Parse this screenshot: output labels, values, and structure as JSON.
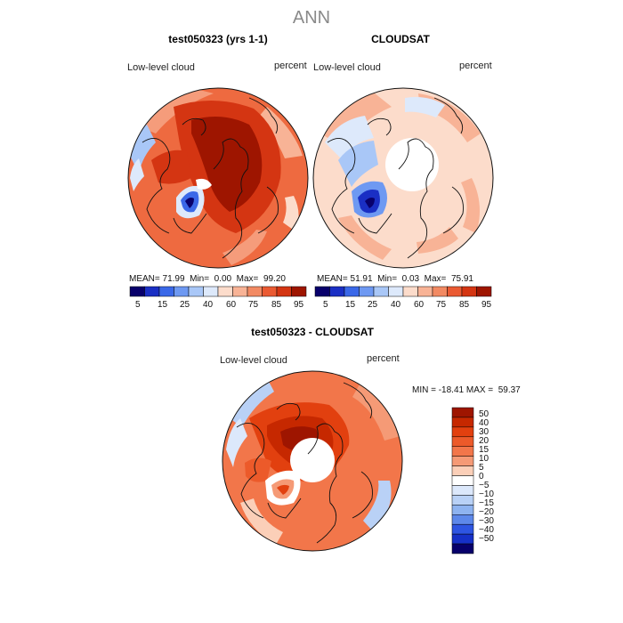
{
  "page": {
    "season": "ANN"
  },
  "panels": [
    {
      "title": "test050323 (yrs 1-1)",
      "variable": "Low-level cloud",
      "units": "percent",
      "stats": {
        "mean_label": "MEAN=",
        "mean": "71.99",
        "min_label": "Min=",
        "min": "0.00",
        "max_label": "Max=",
        "max": "99.20"
      },
      "colorbar_ticks": [
        "5",
        "15",
        "25",
        "40",
        "60",
        "75",
        "85",
        "95"
      ]
    },
    {
      "title": "CLOUDSAT",
      "variable": "Low-level cloud",
      "units": "percent",
      "stats": {
        "mean_label": "MEAN=",
        "mean": "51.91",
        "min_label": "Min=",
        "min": "0.03",
        "max_label": "Max=",
        "max": "75.91"
      },
      "colorbar_ticks": [
        "5",
        "15",
        "25",
        "40",
        "60",
        "75",
        "85",
        "95"
      ]
    }
  ],
  "diff_panel": {
    "title": "test050323 - CLOUDSAT",
    "variable": "Low-level cloud",
    "units": "percent",
    "range_text": "MIN = -18.41 MAX =  59.37",
    "legend_labels": [
      "50",
      "40",
      "30",
      "20",
      "15",
      "10",
      "5",
      "0",
      "−5",
      "−10",
      "−15",
      "−20",
      "−30",
      "−40",
      "−50"
    ]
  },
  "colors": {
    "abs_scale": [
      "#08006b",
      "#1a2fc4",
      "#3a68e8",
      "#6e99f2",
      "#a9c7f7",
      "#dde9fb",
      "#fcdccb",
      "#f8b396",
      "#f28a63",
      "#ea5a32",
      "#d43512",
      "#9e1500"
    ],
    "diff_scale": [
      "#9e1500",
      "#c62800",
      "#e2400f",
      "#ec5a2a",
      "#f2764a",
      "#f59a76",
      "#fbcfb8",
      "#ffffff",
      "#dce8fb",
      "#b9d1f6",
      "#8eb3f0",
      "#5d88ea",
      "#2e55e2",
      "#1630c7",
      "#07006b"
    ]
  }
}
